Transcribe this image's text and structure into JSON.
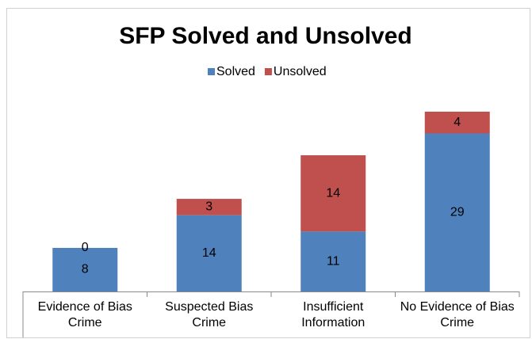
{
  "chart_data": {
    "type": "stacked_bar",
    "title": "SFP Solved and Unsolved",
    "categories": [
      "Evidence of Bias Crime",
      "Suspected Bias Crime",
      "Insufficient Information",
      "No Evidence of Bias Crime"
    ],
    "series": [
      {
        "name": "Solved",
        "color": "#4f81bd",
        "values": [
          8,
          14,
          11,
          29
        ]
      },
      {
        "name": "Unsolved",
        "color": "#c0504d",
        "values": [
          0,
          3,
          14,
          4
        ]
      }
    ],
    "legend": "top"
  }
}
